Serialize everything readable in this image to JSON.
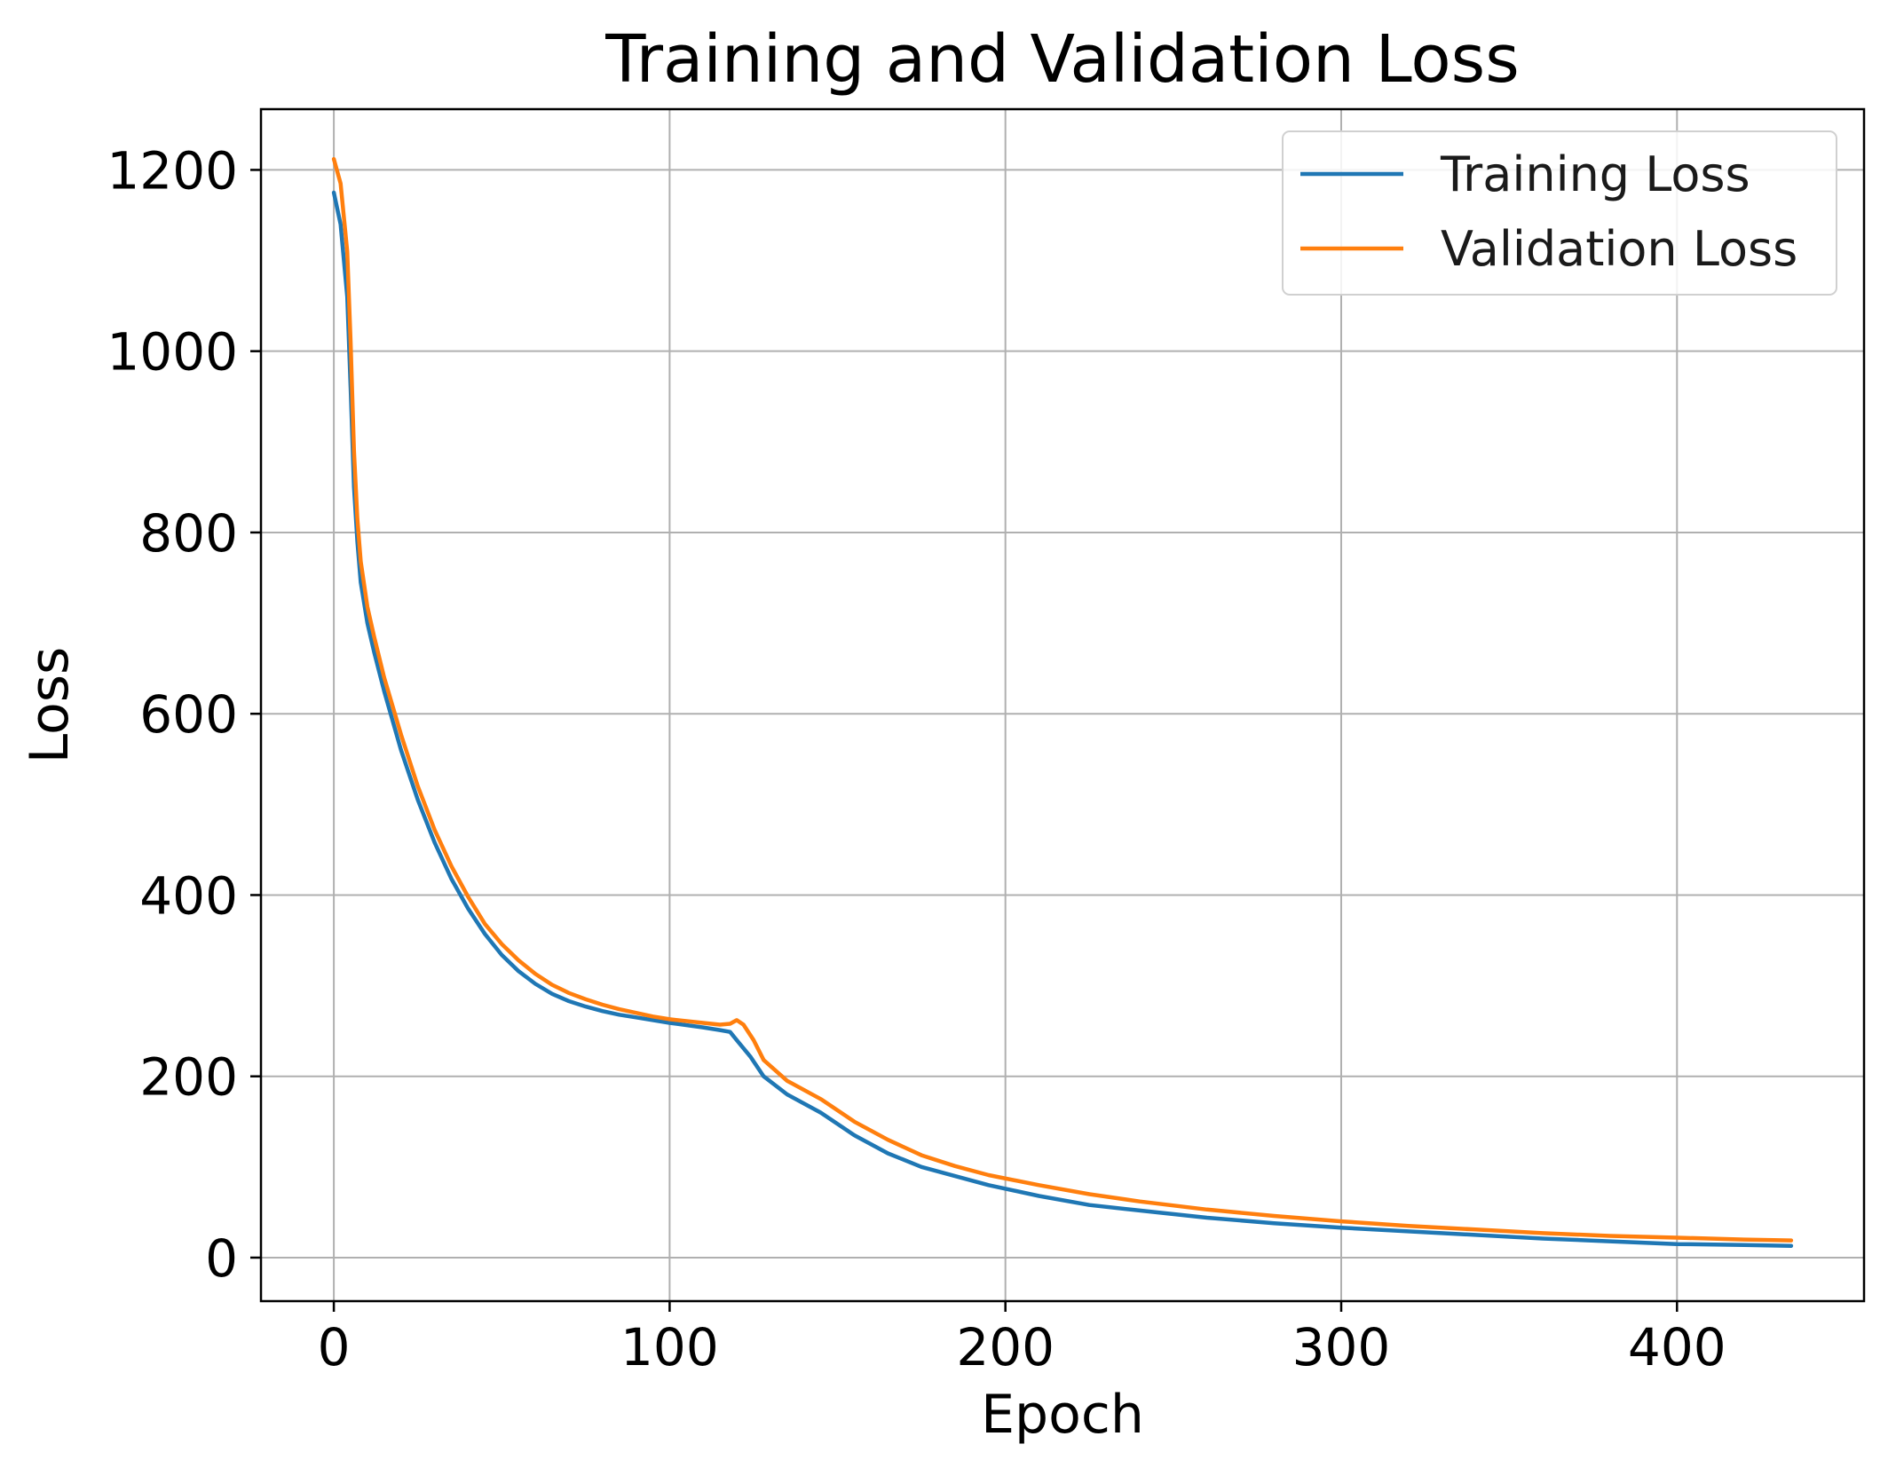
{
  "chart_data": {
    "type": "line",
    "title": "Training and Validation Loss",
    "xlabel": "Epoch",
    "ylabel": "Loss",
    "xlim": [
      -21.7,
      455.7
    ],
    "ylim": [
      -48,
      1267
    ],
    "xticks": [
      0,
      100,
      200,
      300,
      400
    ],
    "yticks": [
      0,
      200,
      400,
      600,
      800,
      1000,
      1200
    ],
    "grid": true,
    "legend_position": "top-right",
    "series": [
      {
        "name": "Training Loss",
        "color": "#1f77b4",
        "points": [
          [
            0,
            1175
          ],
          [
            2,
            1140
          ],
          [
            4,
            1060
          ],
          [
            5,
            960
          ],
          [
            6,
            850
          ],
          [
            7,
            790
          ],
          [
            8,
            745
          ],
          [
            10,
            700
          ],
          [
            12,
            668
          ],
          [
            15,
            625
          ],
          [
            20,
            560
          ],
          [
            25,
            505
          ],
          [
            30,
            458
          ],
          [
            35,
            418
          ],
          [
            40,
            385
          ],
          [
            45,
            357
          ],
          [
            50,
            334
          ],
          [
            55,
            316
          ],
          [
            60,
            302
          ],
          [
            65,
            291
          ],
          [
            70,
            283
          ],
          [
            75,
            277
          ],
          [
            80,
            272
          ],
          [
            85,
            268
          ],
          [
            90,
            265
          ],
          [
            95,
            262
          ],
          [
            100,
            259
          ],
          [
            110,
            254
          ],
          [
            115,
            251
          ],
          [
            118,
            249
          ],
          [
            120,
            240
          ],
          [
            124,
            222
          ],
          [
            128,
            200
          ],
          [
            135,
            180
          ],
          [
            145,
            160
          ],
          [
            155,
            135
          ],
          [
            165,
            115
          ],
          [
            175,
            100
          ],
          [
            185,
            90
          ],
          [
            195,
            80
          ],
          [
            210,
            68
          ],
          [
            225,
            58
          ],
          [
            240,
            52
          ],
          [
            260,
            44
          ],
          [
            280,
            38
          ],
          [
            300,
            33
          ],
          [
            320,
            29
          ],
          [
            340,
            25
          ],
          [
            360,
            21
          ],
          [
            380,
            18
          ],
          [
            400,
            15
          ],
          [
            420,
            14
          ],
          [
            434,
            13
          ]
        ]
      },
      {
        "name": "Validation Loss",
        "color": "#ff7f0e",
        "points": [
          [
            0,
            1212
          ],
          [
            2,
            1185
          ],
          [
            4,
            1110
          ],
          [
            5,
            1010
          ],
          [
            6,
            890
          ],
          [
            7,
            815
          ],
          [
            8,
            768
          ],
          [
            10,
            718
          ],
          [
            12,
            685
          ],
          [
            15,
            640
          ],
          [
            20,
            577
          ],
          [
            25,
            520
          ],
          [
            30,
            472
          ],
          [
            35,
            432
          ],
          [
            40,
            398
          ],
          [
            45,
            368
          ],
          [
            50,
            346
          ],
          [
            55,
            328
          ],
          [
            60,
            313
          ],
          [
            65,
            301
          ],
          [
            70,
            292
          ],
          [
            75,
            285
          ],
          [
            80,
            279
          ],
          [
            85,
            274
          ],
          [
            90,
            270
          ],
          [
            95,
            266
          ],
          [
            100,
            263
          ],
          [
            110,
            259
          ],
          [
            115,
            257
          ],
          [
            118,
            258
          ],
          [
            120,
            262
          ],
          [
            122,
            257
          ],
          [
            125,
            240
          ],
          [
            128,
            218
          ],
          [
            135,
            195
          ],
          [
            145,
            175
          ],
          [
            155,
            150
          ],
          [
            165,
            130
          ],
          [
            175,
            113
          ],
          [
            185,
            101
          ],
          [
            195,
            91
          ],
          [
            210,
            80
          ],
          [
            225,
            70
          ],
          [
            240,
            62
          ],
          [
            260,
            53
          ],
          [
            280,
            46
          ],
          [
            300,
            40
          ],
          [
            320,
            35
          ],
          [
            340,
            31
          ],
          [
            360,
            27
          ],
          [
            380,
            24
          ],
          [
            400,
            22
          ],
          [
            420,
            20
          ],
          [
            434,
            19
          ]
        ]
      }
    ]
  }
}
